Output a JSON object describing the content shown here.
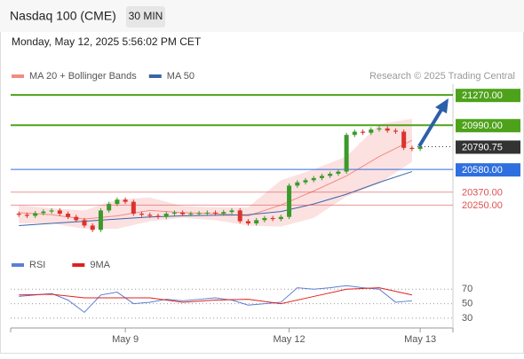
{
  "chart_data": {
    "type": "candlestick",
    "title": "Nasdaq 100 (CME)",
    "timeframe": "30 MIN",
    "datetime": "Monday, May 12, 2025 5:56:02 PM CET",
    "source": "Research © 2025 Trading Central",
    "xlim": [
      -1,
      53
    ],
    "xticks": [
      {
        "value": 13,
        "label": "May 9"
      },
      {
        "value": 33,
        "label": "May 12"
      },
      {
        "value": 49,
        "label": "May 13"
      }
    ],
    "ylim": [
      19850,
      21370
    ],
    "up_color": "#3a9a2a",
    "down_color": "#d9342b",
    "x": [
      0,
      1,
      2,
      3,
      4,
      5,
      6,
      7,
      8,
      9,
      10,
      11,
      12,
      13,
      14,
      15,
      16,
      17,
      18,
      19,
      20,
      21,
      22,
      23,
      24,
      25,
      26,
      27,
      28,
      29,
      30,
      31,
      32,
      33,
      34,
      35,
      36,
      37,
      38,
      39,
      40,
      41,
      42,
      43,
      44,
      45,
      46,
      47,
      48,
      49
    ],
    "open": [
      20170,
      20160,
      20150,
      20175,
      20190,
      20200,
      20170,
      20140,
      20110,
      20060,
      20020,
      20200,
      20260,
      20300,
      20280,
      20170,
      20160,
      20150,
      20140,
      20170,
      20180,
      20165,
      20170,
      20175,
      20180,
      20170,
      20185,
      20200,
      20100,
      20080,
      20110,
      20130,
      20120,
      20140,
      20430,
      20460,
      20480,
      20500,
      20520,
      20540,
      20560,
      20900,
      20930,
      20920,
      20950,
      20960,
      20940,
      20930,
      20780,
      20770
    ],
    "high": [
      20190,
      20180,
      20195,
      20210,
      20220,
      20220,
      20190,
      20160,
      20130,
      20080,
      20220,
      20280,
      20320,
      20320,
      20300,
      20190,
      20180,
      20170,
      20190,
      20200,
      20200,
      20190,
      20195,
      20200,
      20200,
      20205,
      20220,
      20220,
      20120,
      20130,
      20150,
      20150,
      20160,
      20450,
      20480,
      20500,
      20520,
      20540,
      20560,
      20580,
      20920,
      20950,
      20950,
      20970,
      20980,
      20980,
      20960,
      20950,
      20800,
      20810
    ],
    "low": [
      20140,
      20130,
      20130,
      20155,
      20170,
      20150,
      20120,
      20090,
      20040,
      20000,
      20000,
      20180,
      20240,
      20260,
      20150,
      20140,
      20130,
      20120,
      20120,
      20150,
      20145,
      20145,
      20150,
      20155,
      20150,
      20150,
      20165,
      20080,
      20060,
      20060,
      20090,
      20100,
      20100,
      20120,
      20410,
      20440,
      20460,
      20480,
      20500,
      20520,
      20540,
      20880,
      20900,
      20900,
      20930,
      20920,
      20910,
      20760,
      20750,
      20750
    ],
    "close": [
      20160,
      20150,
      20175,
      20190,
      20200,
      20170,
      20140,
      20110,
      20060,
      20020,
      20200,
      20260,
      20300,
      20280,
      20170,
      20160,
      20150,
      20140,
      20170,
      20180,
      20165,
      20170,
      20175,
      20180,
      20170,
      20185,
      20200,
      20100,
      20080,
      20110,
      20130,
      20120,
      20140,
      20430,
      20460,
      20480,
      20500,
      20520,
      20540,
      20560,
      20900,
      20930,
      20920,
      20950,
      20960,
      20940,
      20930,
      20780,
      20770,
      20790.75
    ],
    "overlays": [
      {
        "name": "MA 20 + Bollinger Bands",
        "color": "#f28b82",
        "band_color": "#fbdada",
        "x": [
          0,
          4,
          8,
          12,
          16,
          20,
          24,
          28,
          32,
          36,
          40,
          44,
          48
        ],
        "values": [
          20180,
          20160,
          20120,
          20150,
          20200,
          20180,
          20170,
          20150,
          20250,
          20380,
          20520,
          20700,
          20850
        ],
        "upper": [
          20250,
          20220,
          20200,
          20300,
          20320,
          20240,
          20230,
          20230,
          20480,
          20580,
          20700,
          21000,
          21050
        ],
        "lower": [
          20080,
          20080,
          20030,
          20030,
          20100,
          20130,
          20110,
          20060,
          20050,
          20130,
          20330,
          20450,
          20650
        ]
      },
      {
        "name": "MA 50",
        "color": "#3b64a8",
        "x": [
          0,
          4,
          8,
          12,
          16,
          20,
          24,
          28,
          32,
          36,
          40,
          44,
          48
        ],
        "values": [
          20060,
          20080,
          20100,
          20120,
          20140,
          20150,
          20155,
          20160,
          20190,
          20260,
          20350,
          20460,
          20560
        ]
      }
    ],
    "levels": [
      {
        "value": 21270,
        "label": "21270.00",
        "color": "#4ea21b",
        "style": "box"
      },
      {
        "value": 20990,
        "label": "20990.00",
        "color": "#4ea21b",
        "style": "box"
      },
      {
        "value": 20790.75,
        "label": "20790.75",
        "color": "#333333",
        "style": "current"
      },
      {
        "value": 20580,
        "label": "20580.00",
        "color": "#2f6fe0",
        "style": "box"
      },
      {
        "value": 20370,
        "label": "20370.00",
        "color": "#e05050",
        "style": "text"
      },
      {
        "value": 20250,
        "label": "20250.00",
        "color": "#e05050",
        "style": "text"
      }
    ],
    "rsi": {
      "ylim": [
        20,
        90
      ],
      "yticks": [
        70,
        50,
        30
      ],
      "series": [
        {
          "name": "RSI",
          "color": "#5b7fd4",
          "x": [
            0,
            2,
            4,
            6,
            8,
            10,
            12,
            14,
            16,
            18,
            20,
            22,
            24,
            26,
            28,
            30,
            32,
            34,
            36,
            38,
            40,
            42,
            44,
            46,
            48
          ],
          "values": [
            60,
            62,
            64,
            55,
            38,
            62,
            66,
            50,
            52,
            56,
            54,
            56,
            58,
            55,
            48,
            50,
            52,
            72,
            70,
            72,
            75,
            72,
            70,
            52,
            54
          ]
        },
        {
          "name": "9MA",
          "color": "#e02020",
          "x": [
            0,
            4,
            8,
            12,
            16,
            20,
            24,
            28,
            32,
            36,
            40,
            44,
            48
          ],
          "values": [
            62,
            63,
            58,
            58,
            58,
            52,
            55,
            56,
            50,
            60,
            70,
            72,
            62
          ]
        }
      ]
    }
  }
}
